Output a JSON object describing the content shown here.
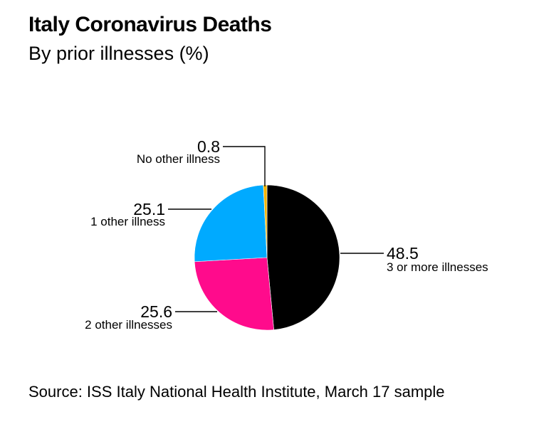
{
  "header": {
    "title": "Italy Coronavirus Deaths",
    "subtitle": "By prior illnesses (%)"
  },
  "footer": {
    "source": "Source: ISS Italy National Health Institute, March 17 sample"
  },
  "chart_data": {
    "type": "pie",
    "title": "Italy Coronavirus Deaths",
    "subtitle": "By prior illnesses (%)",
    "slices": [
      {
        "label": "3 or more illnesses",
        "value": 48.5,
        "display": "48.5",
        "color": "#000000"
      },
      {
        "label": "2 other illnesses",
        "value": 25.6,
        "display": "25.6",
        "color": "#ff0b8c"
      },
      {
        "label": "1 other illness",
        "value": 25.1,
        "display": "25.1",
        "color": "#00aaff"
      },
      {
        "label": "No other illness",
        "value": 0.8,
        "display": "0.8",
        "color": "#f5b400"
      }
    ],
    "legend": "none",
    "labels": "outside with leader lines"
  }
}
